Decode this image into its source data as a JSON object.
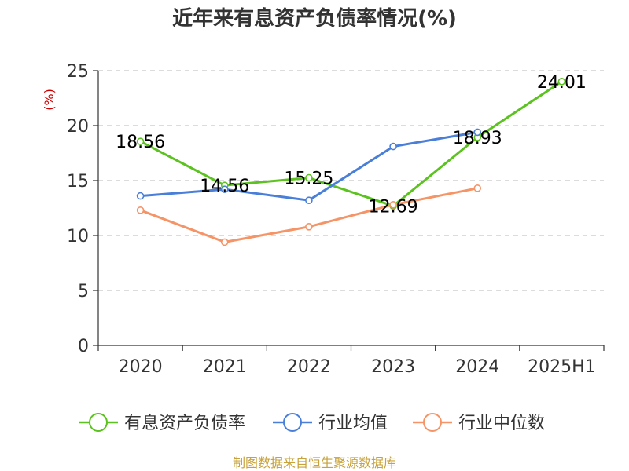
{
  "chart_data": {
    "type": "line",
    "title": "近年来有息资产负债率情况(%)",
    "ylabel": "(%)",
    "categories": [
      "2020",
      "2021",
      "2022",
      "2023",
      "2024",
      "2025H1"
    ],
    "ylim": [
      0,
      25
    ],
    "yticks": [
      "0",
      "5",
      "10",
      "15",
      "20",
      "25"
    ],
    "grid": true,
    "legend_position": "bottom",
    "series": [
      {
        "name": "有息资产负债率",
        "color": "#5cc21f",
        "values": [
          18.56,
          14.56,
          15.25,
          12.69,
          18.93,
          24.01
        ],
        "labels": [
          "18.56",
          "14.56",
          "15.25",
          "12.69",
          "18.93",
          "24.01"
        ]
      },
      {
        "name": "行业均值",
        "color": "#4a7fd9",
        "values": [
          13.6,
          14.2,
          13.2,
          18.1,
          19.4,
          null
        ]
      },
      {
        "name": "行业中位数",
        "color": "#f59467",
        "values": [
          12.3,
          9.4,
          10.8,
          12.8,
          14.3,
          null
        ]
      }
    ],
    "source": "制图数据来自恒生聚源数据库"
  }
}
